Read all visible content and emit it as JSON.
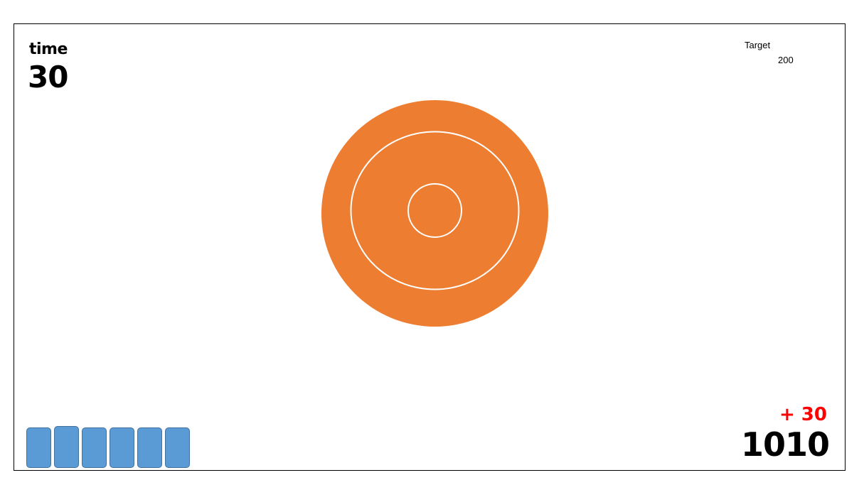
{
  "hud": {
    "time_label": "time",
    "time_value": "30",
    "target_label": "Target",
    "target_value": "200",
    "bonus": "+ 30",
    "score": "1010"
  },
  "target_board": {
    "rings": [
      "outer",
      "middle",
      "bullseye"
    ],
    "fill_color": "#ed7d31",
    "ring_color": "#ffffff"
  },
  "ammo": {
    "count": 6,
    "slot_color": "#5b9bd5",
    "slot_border": "#41719c"
  },
  "colors": {
    "bonus": "#ff0000",
    "text": "#000000",
    "frame": "#000000"
  }
}
